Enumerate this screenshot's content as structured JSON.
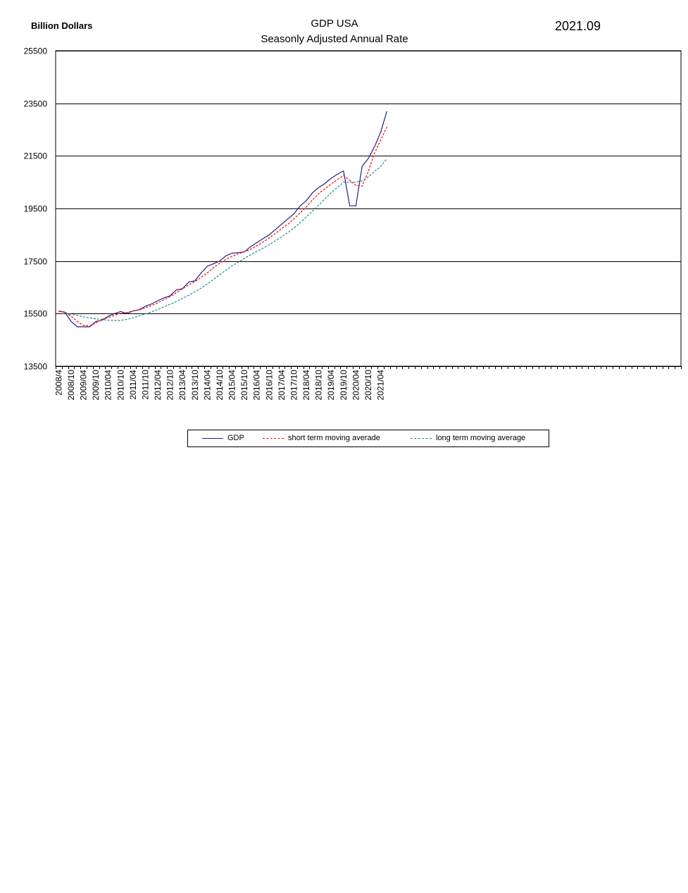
{
  "header": {
    "unit_label": "Billion Dollars",
    "title_line1": "GDP USA",
    "title_line2": "Seasonly Adjusted Annual Rate",
    "date_label": "2021.09"
  },
  "colors": {
    "gdp": "#1f1f8f",
    "short_ma": "#ff0000",
    "long_ma": "#1a8a8a",
    "grid": "#000000"
  },
  "chart_data": {
    "type": "line",
    "title": "GDP USA",
    "subtitle": "Seasonly Adjusted Annual Rate",
    "ylabel": "Billion Dollars",
    "xlabel": "",
    "ylim": [
      13500,
      25500
    ],
    "yticks": [
      13500,
      15500,
      17500,
      19500,
      21500,
      23500,
      25500
    ],
    "grid": true,
    "legend_position": "bottom",
    "x": [
      "2008/4",
      "2008/7",
      "2008/10",
      "2009/01",
      "2009/04",
      "2009/07",
      "2009/10",
      "2010/01",
      "2010/04",
      "2010/07",
      "2010/10",
      "2011/01",
      "2011/04",
      "2011/07",
      "2011/10",
      "2012/01",
      "2012/04",
      "2012/07",
      "2012/10",
      "2013/01",
      "2013/04",
      "2013/07",
      "2013/10",
      "2014/01",
      "2014/04",
      "2014/07",
      "2014/10",
      "2015/01",
      "2015/04",
      "2015/07",
      "2015/10",
      "2016/01",
      "2016/04",
      "2016/07",
      "2016/10",
      "2017/01",
      "2017/04",
      "2017/07",
      "2017/10",
      "2018/01",
      "2018/04",
      "2018/07",
      "2018/10",
      "2019/01",
      "2019/04",
      "2019/07",
      "2019/10",
      "2020/01",
      "2020/04",
      "2020/07",
      "2020/10",
      "2021/01",
      "2021/04",
      "2021/07"
    ],
    "x_tick_labels": [
      "2008/4",
      "2008/10",
      "2009/04",
      "2009/10",
      "2010/04",
      "2010/10",
      "2011/04",
      "2011/10",
      "2012/04",
      "2012/10",
      "2013/04",
      "2013/10",
      "2014/04",
      "2014/10",
      "2015/04",
      "2015/10",
      "2016/04",
      "2016/10",
      "2017/04",
      "2017/10",
      "2018/04",
      "2018/10",
      "2019/04",
      "2019/10",
      "2020/04",
      "2020/10",
      "2021/04"
    ],
    "total_slots": 101,
    "series": [
      {
        "name": "GDP",
        "color": "#1f1f8f",
        "dash": "solid",
        "values": [
          15600,
          15550,
          15200,
          15000,
          15000,
          15000,
          15200,
          15250,
          15400,
          15500,
          15580,
          15500,
          15600,
          15650,
          15780,
          15870,
          15990,
          16100,
          16180,
          16400,
          16450,
          16700,
          16750,
          17050,
          17300,
          17400,
          17500,
          17700,
          17800,
          17820,
          17850,
          18050,
          18200,
          18350,
          18500,
          18700,
          18900,
          19100,
          19300,
          19600,
          19800,
          20100,
          20300,
          20450,
          20650,
          20800,
          20930,
          19600,
          19600,
          21100,
          21400,
          21850,
          22400,
          23200
        ]
      },
      {
        "name": "short term moving averade",
        "color": "#ff0000",
        "dash": "dashed",
        "values": [
          15580,
          15560,
          15400,
          15200,
          15050,
          15030,
          15150,
          15280,
          15350,
          15430,
          15520,
          15540,
          15600,
          15640,
          15720,
          15810,
          15910,
          16030,
          16150,
          16300,
          16450,
          16600,
          16720,
          16880,
          17050,
          17250,
          17420,
          17560,
          17680,
          17780,
          17850,
          17950,
          18080,
          18220,
          18380,
          18550,
          18730,
          18900,
          19100,
          19330,
          19560,
          19830,
          20070,
          20250,
          20430,
          20600,
          20750,
          20570,
          20380,
          20350,
          20900,
          21600,
          22100,
          22600
        ]
      },
      {
        "name": "long term moving average",
        "color": "#1a8a8a",
        "dash": "dashed",
        "values": [
          15510,
          15500,
          15480,
          15430,
          15380,
          15340,
          15300,
          15280,
          15250,
          15240,
          15240,
          15280,
          15340,
          15410,
          15490,
          15570,
          15660,
          15760,
          15860,
          15960,
          16080,
          16200,
          16330,
          16470,
          16630,
          16800,
          16980,
          17150,
          17320,
          17460,
          17600,
          17740,
          17870,
          17990,
          18120,
          18270,
          18420,
          18580,
          18760,
          18960,
          19180,
          19400,
          19630,
          19870,
          20100,
          20300,
          20500,
          20500,
          20500,
          20550,
          20700,
          20900,
          21100,
          21400
        ]
      }
    ]
  }
}
